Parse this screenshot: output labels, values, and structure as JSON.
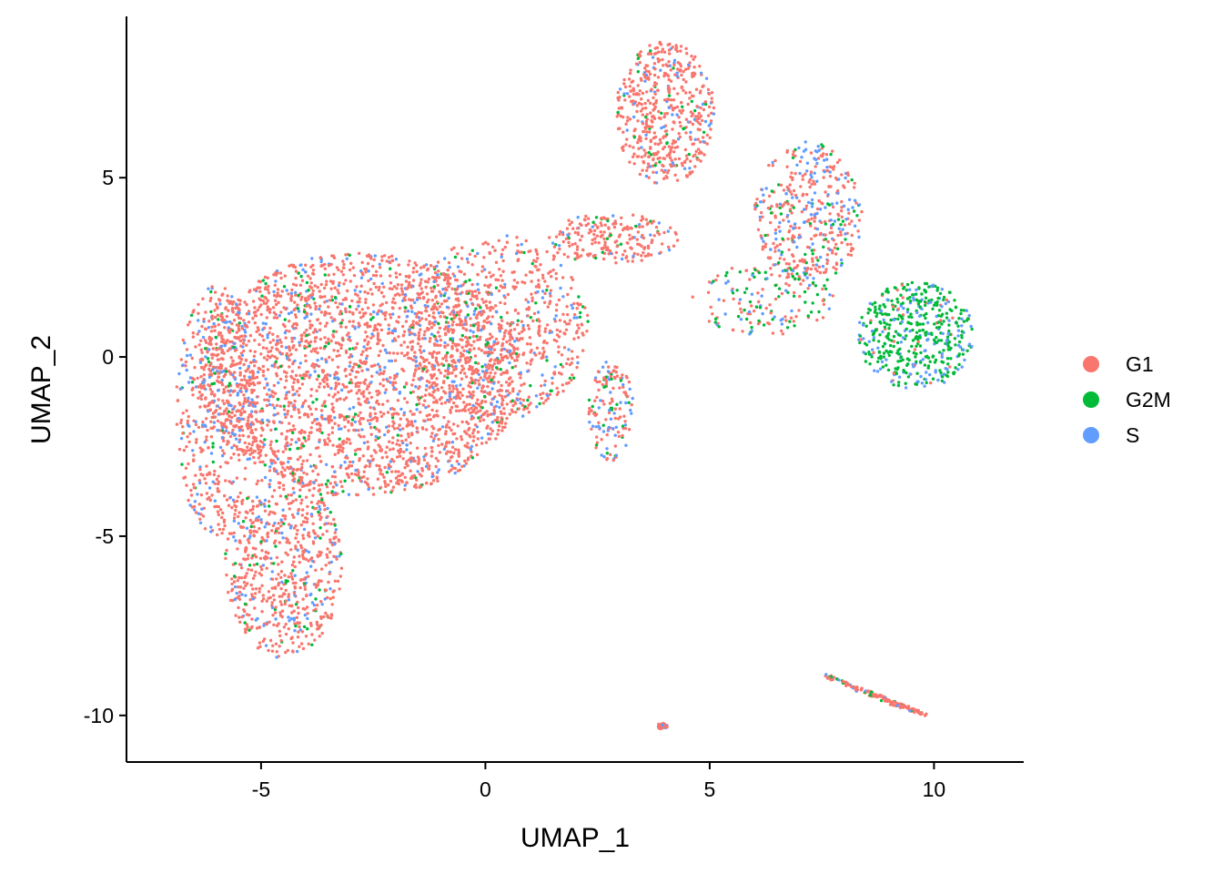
{
  "chart_data": {
    "type": "scatter",
    "title": "",
    "xlabel": "UMAP_1",
    "ylabel": "UMAP_2",
    "xlim": [
      -8.0,
      12.0
    ],
    "ylim": [
      -11.3,
      9.5
    ],
    "x_ticks": [
      -5,
      0,
      5,
      10
    ],
    "y_ticks": [
      -10,
      -5,
      0,
      5
    ],
    "x_tick_labels": [
      "-5",
      "0",
      "5",
      "10"
    ],
    "y_tick_labels": [
      "-10",
      "-5",
      "0",
      "5"
    ],
    "grid": false,
    "legend_position": "right",
    "series": [
      {
        "name": "G1",
        "color": "#F8766D"
      },
      {
        "name": "G2M",
        "color": "#00BA38"
      },
      {
        "name": "S",
        "color": "#619CFF"
      }
    ],
    "regions": [
      {
        "label": "main-body",
        "cx": -2.8,
        "cy": -0.5,
        "rx": 3.6,
        "ry": 3.4,
        "n": 2600,
        "mix": [
          0.82,
          0.05,
          0.13
        ]
      },
      {
        "label": "main-right-lobe",
        "cx": 0.3,
        "cy": 0.8,
        "rx": 2.0,
        "ry": 2.6,
        "n": 700,
        "mix": [
          0.8,
          0.07,
          0.13
        ]
      },
      {
        "label": "lower-tail",
        "cx": -4.5,
        "cy": -5.8,
        "rx": 1.3,
        "ry": 2.6,
        "n": 650,
        "mix": [
          0.78,
          0.06,
          0.16
        ]
      },
      {
        "label": "left-edge",
        "cx": -6.0,
        "cy": -1.5,
        "rx": 0.9,
        "ry": 3.5,
        "n": 500,
        "mix": [
          0.72,
          0.05,
          0.23
        ]
      },
      {
        "label": "bridge",
        "cx": 2.8,
        "cy": 3.3,
        "rx": 1.5,
        "ry": 0.7,
        "n": 220,
        "mix": [
          0.8,
          0.07,
          0.13
        ]
      },
      {
        "label": "top-cluster",
        "cx": 4.0,
        "cy": 6.8,
        "rx": 1.1,
        "ry": 2.0,
        "n": 520,
        "mix": [
          0.85,
          0.06,
          0.09
        ]
      },
      {
        "label": "right-arm",
        "cx": 7.2,
        "cy": 4.0,
        "rx": 1.2,
        "ry": 2.0,
        "n": 420,
        "mix": [
          0.62,
          0.1,
          0.28
        ]
      },
      {
        "label": "g2m-cluster",
        "cx": 9.6,
        "cy": 0.6,
        "rx": 1.3,
        "ry": 1.5,
        "n": 480,
        "mix": [
          0.06,
          0.68,
          0.26
        ]
      },
      {
        "label": "mid-stream",
        "cx": 6.2,
        "cy": 1.6,
        "rx": 1.6,
        "ry": 1.0,
        "n": 160,
        "mix": [
          0.48,
          0.3,
          0.22
        ]
      },
      {
        "label": "lower-arm",
        "cx": 2.8,
        "cy": -1.5,
        "rx": 0.5,
        "ry": 1.4,
        "n": 150,
        "mix": [
          0.6,
          0.18,
          0.22
        ]
      },
      {
        "label": "small-island",
        "cx": 3.95,
        "cy": -10.3,
        "rx": 0.12,
        "ry": 0.08,
        "n": 30,
        "mix": [
          0.95,
          0.0,
          0.05
        ]
      }
    ],
    "streak": {
      "x0": 7.6,
      "y0": -8.9,
      "x1": 9.8,
      "y1": -10.0,
      "n": 140,
      "mix": [
        0.78,
        0.1,
        0.12
      ]
    }
  }
}
